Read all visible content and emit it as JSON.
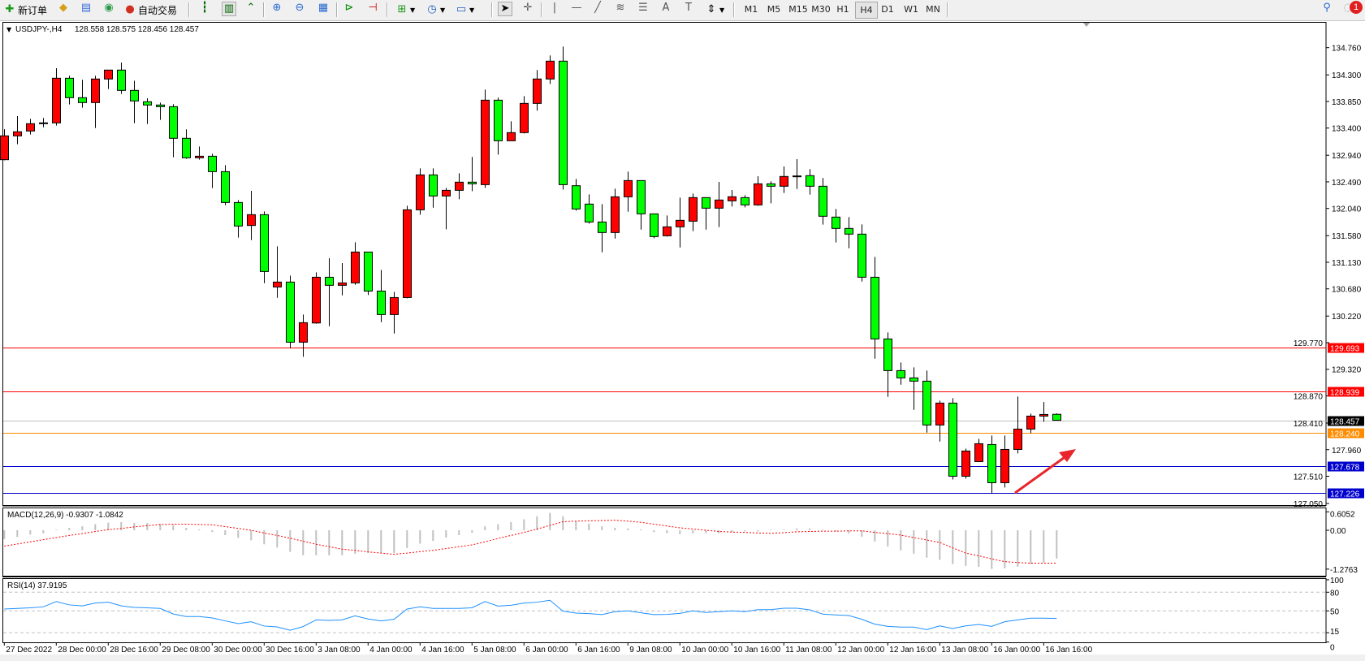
{
  "toolbar": {
    "new_order_label": "新订单",
    "autotrading_label": "自动交易",
    "timeframes": [
      "M1",
      "M5",
      "M15",
      "M30",
      "H1",
      "H4",
      "D1",
      "W1",
      "MN"
    ],
    "active_timeframe": "H4",
    "notification_count": "1",
    "icons": [
      "new-order-icon",
      "gold-icon",
      "data-window-icon",
      "signals-icon",
      "autotrading-icon",
      "bar-chart-icon",
      "candlestick-icon",
      "line-chart-icon",
      "zoom-in-icon",
      "zoom-out-icon",
      "tile-windows-icon",
      "autoscroll-icon",
      "chart-shift-icon",
      "indicators-icon",
      "periods-icon",
      "templates-icon",
      "cursor-icon",
      "crosshair-icon",
      "vertical-line-icon",
      "horizontal-line-icon",
      "trendline-icon",
      "fibonacci-icon",
      "channel-icon",
      "text-icon",
      "label-icon",
      "arrows-icon",
      "search-icon",
      "notifications-icon"
    ]
  },
  "chart": {
    "symbol": "USDJPY-,H4",
    "header_ohlc": "128.558 128.575 128.456 128.457",
    "macd_label": "MACD(12,26,9) -0.9307 -1.0842",
    "rsi_label": "RSI(14) 37.9195",
    "colors": {
      "bull": "#ff0000",
      "bear": "#00ff00",
      "macd_hist": "#c0c0c0",
      "macd_signal": "#ff0000",
      "rsi": "#1e90ff",
      "arrow": "#e8262b"
    }
  },
  "chart_data": {
    "type": "candlestick",
    "price_axis_ticks": [
      "134.760",
      "134.300",
      "133.850",
      "133.400",
      "132.940",
      "132.490",
      "132.040",
      "131.580",
      "131.130",
      "130.680",
      "130.220",
      "129.770",
      "129.320",
      "128.870",
      "128.410",
      "127.960",
      "127.510",
      "127.050"
    ],
    "time_labels": [
      "27 Dec 2022",
      "28 Dec 00:00",
      "28 Dec 16:00",
      "29 Dec 08:00",
      "30 Dec 00:00",
      "30 Dec 16:00",
      "3 Jan 08:00",
      "4 Jan 00:00",
      "4 Jan 16:00",
      "5 Jan 08:00",
      "6 Jan 00:00",
      "6 Jan 16:00",
      "9 Jan 08:00",
      "10 Jan 00:00",
      "10 Jan 16:00",
      "11 Jan 08:00",
      "12 Jan 00:00",
      "12 Jan 16:00",
      "13 Jan 08:00",
      "16 Jan 00:00",
      "16 Jan 16:00"
    ],
    "ylim": [
      127.05,
      134.76
    ],
    "ohlc": [
      [
        132.865,
        133.38,
        132.856,
        133.268
      ],
      [
        133.268,
        133.602,
        133.126,
        133.337
      ],
      [
        133.35,
        133.556,
        133.291,
        133.474
      ],
      [
        133.479,
        133.57,
        133.414,
        133.488
      ],
      [
        133.488,
        134.413,
        133.442,
        134.243
      ],
      [
        134.243,
        134.285,
        133.799,
        133.914
      ],
      [
        133.914,
        134.216,
        133.744,
        133.831
      ],
      [
        133.831,
        134.285,
        133.401,
        134.23
      ],
      [
        134.23,
        134.381,
        134.06,
        134.381
      ],
      [
        134.381,
        134.509,
        133.978,
        134.037
      ],
      [
        134.037,
        134.202,
        133.483,
        133.859
      ],
      [
        133.845,
        133.904,
        133.469,
        133.79
      ],
      [
        133.79,
        133.831,
        133.538,
        133.762
      ],
      [
        133.762,
        133.804,
        132.906,
        133.227
      ],
      [
        133.227,
        133.378,
        132.879,
        132.897
      ],
      [
        132.897,
        133.089,
        132.865,
        132.924
      ],
      [
        132.924,
        132.966,
        132.384,
        132.663
      ],
      [
        132.663,
        132.773,
        132.095,
        132.141
      ],
      [
        132.141,
        132.182,
        131.546,
        131.743
      ],
      [
        131.752,
        132.338,
        131.505,
        131.935
      ],
      [
        131.935,
        131.99,
        130.776,
        130.973
      ],
      [
        130.712,
        131.399,
        130.529,
        130.795
      ],
      [
        130.795,
        130.905,
        129.677,
        129.778
      ],
      [
        129.778,
        130.245,
        129.531,
        130.108
      ],
      [
        130.103,
        130.96,
        130.089,
        130.877
      ],
      [
        130.877,
        131.198,
        130.048,
        130.74
      ],
      [
        130.74,
        131.115,
        130.57,
        130.781
      ],
      [
        130.781,
        131.468,
        130.749,
        131.303
      ],
      [
        131.303,
        131.303,
        130.575,
        130.643
      ],
      [
        130.643,
        131.001,
        130.117,
        130.245
      ],
      [
        130.245,
        130.63,
        129.924,
        130.533
      ],
      [
        130.533,
        132.086,
        130.52,
        132.017
      ],
      [
        132.017,
        132.718,
        131.935,
        132.608
      ],
      [
        132.608,
        132.718,
        132.054,
        132.251
      ],
      [
        132.251,
        132.388,
        131.688,
        132.347
      ],
      [
        132.347,
        132.636,
        132.196,
        132.485
      ],
      [
        132.485,
        132.911,
        132.334,
        132.457
      ],
      [
        132.443,
        134.051,
        132.388,
        133.872
      ],
      [
        133.872,
        133.914,
        132.952,
        133.185
      ],
      [
        133.185,
        133.515,
        133.185,
        133.323
      ],
      [
        133.323,
        133.941,
        133.309,
        133.817
      ],
      [
        133.817,
        134.381,
        133.694,
        134.23
      ],
      [
        134.23,
        134.628,
        134.147,
        134.532
      ],
      [
        134.532,
        134.779,
        132.361,
        132.443
      ],
      [
        132.425,
        132.54,
        132.004,
        132.031
      ],
      [
        132.114,
        132.279,
        131.784,
        131.811
      ],
      [
        131.811,
        132.114,
        131.298,
        131.633
      ],
      [
        131.633,
        132.375,
        131.532,
        132.237
      ],
      [
        132.237,
        132.663,
        131.985,
        132.512
      ],
      [
        132.512,
        132.512,
        131.683,
        131.949
      ],
      [
        131.949,
        131.949,
        131.537,
        131.564
      ],
      [
        131.578,
        131.921,
        131.564,
        131.729
      ],
      [
        131.729,
        132.224,
        131.381,
        131.839
      ],
      [
        131.825,
        132.292,
        131.656,
        132.224
      ],
      [
        132.224,
        132.224,
        131.683,
        132.045
      ],
      [
        132.045,
        132.489,
        131.725,
        132.183
      ],
      [
        132.169,
        132.352,
        132.073,
        132.238
      ],
      [
        132.224,
        132.265,
        132.059,
        132.1
      ],
      [
        132.1,
        132.586,
        132.086,
        132.457
      ],
      [
        132.457,
        132.499,
        132.128,
        132.416
      ],
      [
        132.416,
        132.751,
        132.302,
        132.581
      ],
      [
        132.59,
        132.874,
        132.37,
        132.586
      ],
      [
        132.595,
        132.705,
        132.274,
        132.416
      ],
      [
        132.416,
        132.554,
        131.766,
        131.908
      ],
      [
        131.894,
        132.031,
        131.464,
        131.702
      ],
      [
        131.702,
        131.894,
        131.367,
        131.606
      ],
      [
        131.606,
        131.77,
        130.804,
        130.877
      ],
      [
        130.877,
        131.221,
        129.499,
        129.833
      ],
      [
        129.833,
        129.943,
        128.853,
        129.297
      ],
      [
        129.297,
        129.435,
        129.059,
        129.174
      ],
      [
        129.174,
        129.352,
        128.633,
        129.119
      ],
      [
        129.119,
        129.297,
        128.248,
        128.377
      ],
      [
        128.377,
        128.789,
        128.097,
        128.748
      ],
      [
        128.748,
        128.83,
        127.456,
        127.511
      ],
      [
        127.511,
        127.978,
        127.47,
        127.937
      ],
      [
        127.758,
        128.143,
        127.758,
        128.061
      ],
      [
        128.047,
        128.198,
        127.223,
        127.401
      ],
      [
        127.401,
        128.198,
        127.319,
        127.964
      ],
      [
        127.964,
        128.858,
        127.896,
        128.308
      ],
      [
        128.308,
        128.569,
        128.239,
        128.528
      ],
      [
        128.528,
        128.766,
        128.432,
        128.555
      ],
      [
        128.558,
        128.575,
        128.456,
        128.457
      ]
    ],
    "horizontal_lines": [
      {
        "price": "129.693",
        "color": "#ff0000",
        "text_color": "#ffffff"
      },
      {
        "price": "128.939",
        "color": "#ff0000",
        "text_color": "#ffffff"
      },
      {
        "price": "128.457",
        "color": "#c0c0c0",
        "tag_color": "#000000",
        "text_color": "#ffffff"
      },
      {
        "price": "128.240",
        "color": "#ff8c00",
        "text_color": "#ffffff"
      },
      {
        "price": "127.678",
        "color": "#0000cd",
        "text_color": "#ffffff"
      },
      {
        "price": "127.226",
        "color": "#0000cd",
        "text_color": "#ffffff"
      }
    ],
    "macd": {
      "axis_labels": [
        "0.6052",
        "0.00",
        "-1.2763"
      ],
      "ylim": [
        -1.2763,
        0.6052
      ],
      "histogram": [
        -0.29,
        -0.22,
        -0.14,
        -0.1,
        0.02,
        0.08,
        0.13,
        0.2,
        0.25,
        0.27,
        0.24,
        0.24,
        0.21,
        0.17,
        0.08,
        0.03,
        -0.06,
        -0.16,
        -0.25,
        -0.33,
        -0.46,
        -0.57,
        -0.71,
        -0.82,
        -0.82,
        -0.82,
        -0.82,
        -0.77,
        -0.75,
        -0.76,
        -0.75,
        -0.58,
        -0.44,
        -0.35,
        -0.24,
        -0.16,
        -0.08,
        0.13,
        0.2,
        0.27,
        0.36,
        0.46,
        0.57,
        0.46,
        0.3,
        0.22,
        0.13,
        0.08,
        0.06,
        0.03,
        -0.06,
        -0.1,
        -0.13,
        -0.1,
        -0.1,
        -0.1,
        -0.06,
        -0.04,
        -0.04,
        0.02,
        0.02,
        0.06,
        0.06,
        0.02,
        -0.04,
        -0.1,
        -0.21,
        -0.37,
        -0.53,
        -0.66,
        -0.77,
        -0.9,
        -0.97,
        -1.11,
        -1.17,
        -1.2,
        -1.27,
        -1.25,
        -1.2,
        -1.11,
        -1.06,
        -0.93
      ],
      "signal": [
        -0.52,
        -0.45,
        -0.38,
        -0.31,
        -0.24,
        -0.17,
        -0.11,
        -0.04,
        0.02,
        0.06,
        0.11,
        0.15,
        0.19,
        0.2,
        0.2,
        0.19,
        0.18,
        0.12,
        0.06,
        0.0,
        -0.09,
        -0.17,
        -0.26,
        -0.36,
        -0.46,
        -0.54,
        -0.62,
        -0.66,
        -0.71,
        -0.75,
        -0.79,
        -0.75,
        -0.7,
        -0.66,
        -0.6,
        -0.54,
        -0.48,
        -0.38,
        -0.27,
        -0.17,
        -0.07,
        0.04,
        0.16,
        0.28,
        0.3,
        0.31,
        0.32,
        0.33,
        0.3,
        0.26,
        0.2,
        0.14,
        0.08,
        0.04,
        0.0,
        -0.04,
        -0.06,
        -0.07,
        -0.09,
        -0.1,
        -0.08,
        -0.05,
        -0.04,
        -0.03,
        -0.03,
        -0.02,
        -0.02,
        -0.07,
        -0.11,
        -0.16,
        -0.24,
        -0.32,
        -0.4,
        -0.58,
        -0.75,
        -0.84,
        -0.94,
        -1.03,
        -1.06,
        -1.08,
        -1.08,
        -1.08
      ]
    },
    "rsi": {
      "axis_labels": [
        "100",
        "80",
        "50",
        "15",
        "0"
      ],
      "levels": [
        80,
        50,
        15
      ],
      "ylim": [
        0,
        100
      ],
      "values": [
        53,
        54,
        55,
        56.5,
        65,
        59.6,
        58,
        62.6,
        64,
        58,
        55.6,
        55,
        54,
        45,
        41,
        41,
        38.7,
        34,
        29.6,
        32.6,
        25.7,
        24.3,
        19,
        24.8,
        35.6,
        34.8,
        35.6,
        42,
        37,
        34,
        36.5,
        53,
        56.5,
        54,
        54,
        54,
        55,
        65,
        57.8,
        59,
        62.6,
        64,
        67,
        49.6,
        46.5,
        45.6,
        44,
        48.7,
        50,
        47,
        44,
        44.3,
        46,
        50,
        47.4,
        48.7,
        50,
        48.7,
        52,
        52,
        54.3,
        54.3,
        51.7,
        44.8,
        43.5,
        42.6,
        36.5,
        28.7,
        25.2,
        24,
        24,
        20,
        26,
        21.7,
        26,
        28.3,
        25.2,
        32.6,
        35.6,
        38.3,
        38.3,
        37.9
      ]
    }
  }
}
